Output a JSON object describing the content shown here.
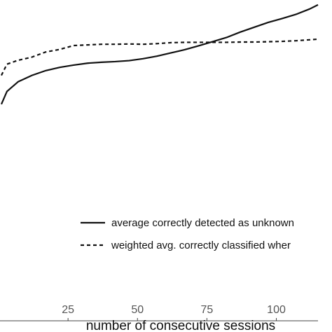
{
  "chart_data": {
    "type": "line",
    "xlabel": "number of consecutive sessions",
    "ylabel": "",
    "x_ticks": [
      25,
      50,
      75,
      100
    ],
    "x_tick_labels": [
      "25",
      "50",
      "75",
      "100"
    ],
    "xlim": [
      0.5,
      115
    ],
    "ylim": [
      0.0,
      1.0
    ],
    "grid": false,
    "legend_position": "bottom-right",
    "series": [
      {
        "name": "average correctly detected as unknown",
        "style": "solid",
        "color": "#111111",
        "x": [
          1,
          3,
          7,
          12,
          17,
          22,
          27,
          32,
          37,
          42,
          47,
          52,
          57,
          62,
          67,
          72,
          77,
          82,
          87,
          92,
          97,
          102,
          107,
          112,
          115
        ],
        "y": [
          0.675,
          0.715,
          0.745,
          0.765,
          0.78,
          0.79,
          0.797,
          0.803,
          0.806,
          0.808,
          0.811,
          0.817,
          0.825,
          0.835,
          0.845,
          0.857,
          0.87,
          0.883,
          0.9,
          0.915,
          0.93,
          0.942,
          0.955,
          0.972,
          0.985
        ]
      },
      {
        "name": "weighted avg. correctly classified wher",
        "style": "dashed",
        "color": "#111111",
        "x": [
          1,
          3,
          7,
          12,
          17,
          22,
          27,
          32,
          37,
          42,
          47,
          52,
          57,
          62,
          67,
          72,
          77,
          82,
          87,
          92,
          97,
          102,
          107,
          112,
          115
        ],
        "y": [
          0.765,
          0.8,
          0.812,
          0.822,
          0.838,
          0.846,
          0.858,
          0.86,
          0.862,
          0.862,
          0.863,
          0.862,
          0.864,
          0.867,
          0.868,
          0.868,
          0.868,
          0.868,
          0.869,
          0.869,
          0.87,
          0.871,
          0.873,
          0.876,
          0.878
        ]
      }
    ]
  }
}
